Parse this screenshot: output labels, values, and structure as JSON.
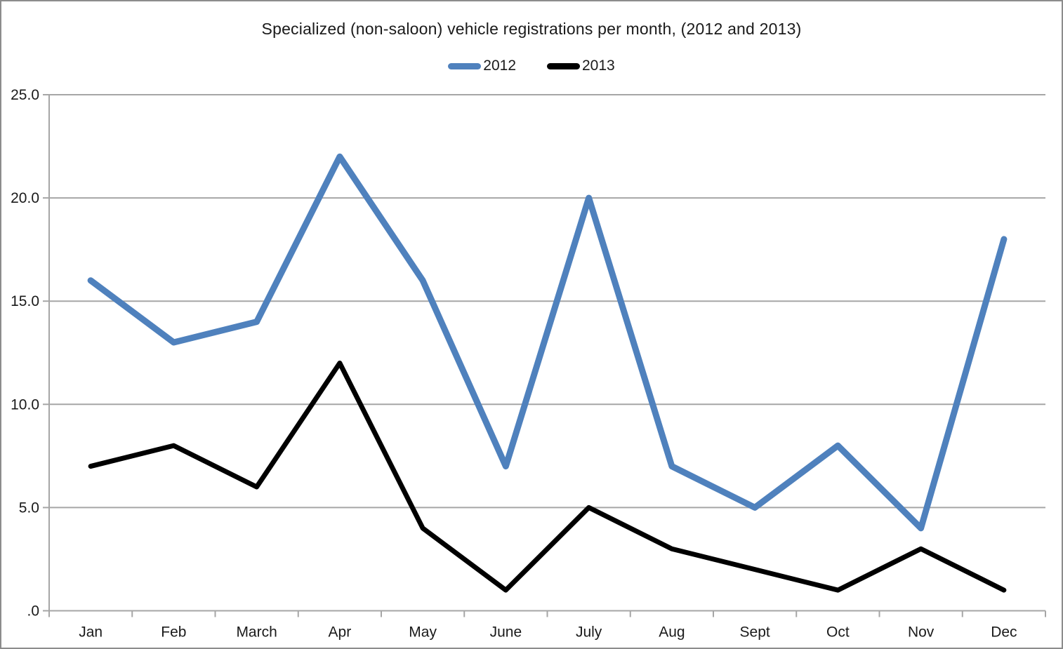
{
  "chart_data": {
    "type": "line",
    "title": "Specialized (non-saloon) vehicle registrations per month, (2012 and 2013)",
    "categories": [
      "Jan",
      "Feb",
      "March",
      "Apr",
      "May",
      "June",
      "July",
      "Aug",
      "Sept",
      "Oct",
      "Nov",
      "Dec"
    ],
    "series": [
      {
        "name": "2012",
        "color": "#4F81BD",
        "values": [
          16,
          13,
          14,
          22,
          16,
          7,
          20,
          7,
          5,
          8,
          4,
          18
        ]
      },
      {
        "name": "2013",
        "color": "#000000",
        "values": [
          7,
          8,
          6,
          12,
          4,
          1,
          5,
          3,
          2,
          1,
          3,
          1
        ]
      }
    ],
    "xlabel": "",
    "ylabel": "",
    "ylim": [
      0,
      25
    ],
    "ytick_step": 5,
    "ytick_labels": [
      "25.0",
      "20.0",
      "15.0",
      "10.0",
      "5.0",
      ".0"
    ],
    "grid": true,
    "legend_position": "top",
    "colors": {
      "gridline": "#A6A6A6",
      "axis": "#A6A6A6",
      "text": "#1a1a1a",
      "background": "#ffffff",
      "frame_border": "#8c8c8c"
    }
  }
}
